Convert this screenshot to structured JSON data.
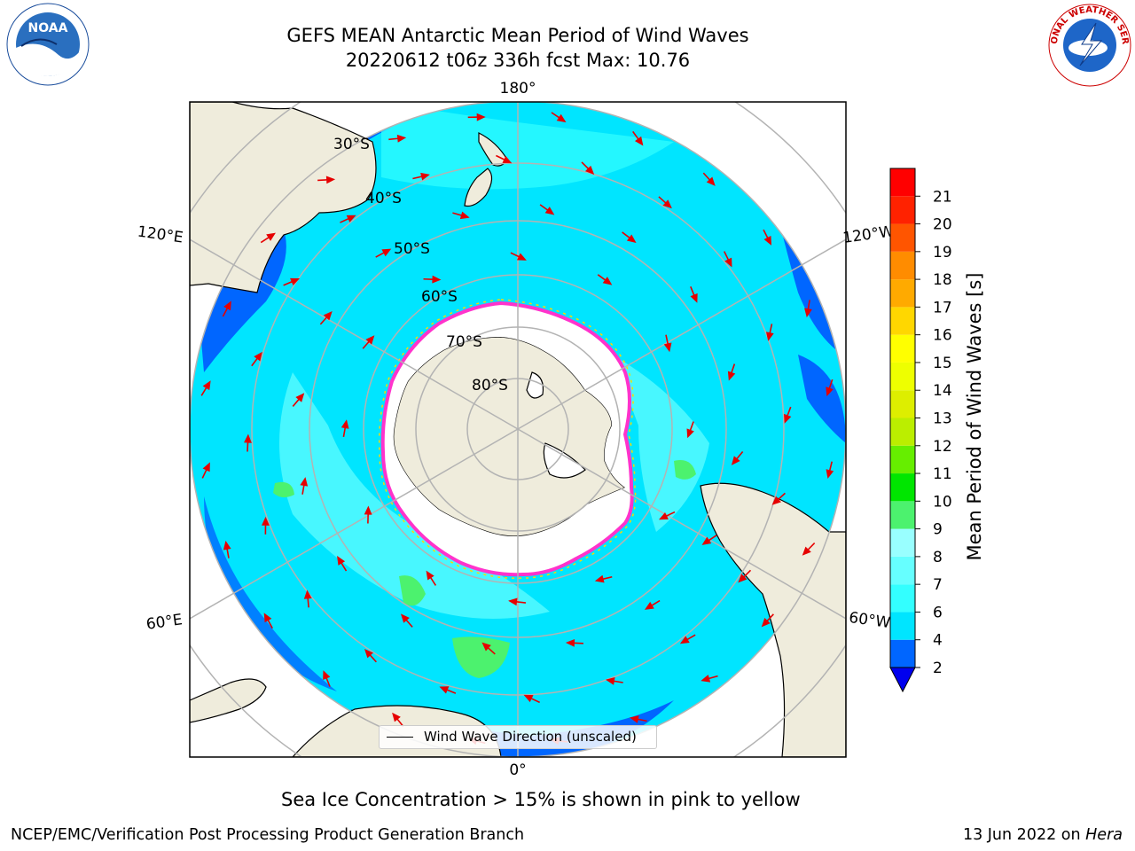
{
  "header": {
    "title_line1": "GEFS MEAN Antarctic Mean Period of Wind Waves",
    "title_line2": "20220612 t06z 336h fcst   Max: 10.76"
  },
  "logos": {
    "left": {
      "name": "noaa-logo",
      "text": "NOAA"
    },
    "right": {
      "name": "nws-logo",
      "text": "NATIONAL WEATHER SERVICE"
    }
  },
  "map": {
    "projection": "south-polar-stereographic",
    "meridian_labels": {
      "top": "180°",
      "bottom": "0°",
      "upper_left": "120°E",
      "upper_right": "120°W",
      "lower_left": "60°E",
      "lower_right": "60°W"
    },
    "parallel_labels": [
      "30°S",
      "40°S",
      "50°S",
      "60°S",
      "70°S",
      "80°S"
    ],
    "legend_label": "Wind Wave Direction (unscaled)",
    "colors": {
      "land": "#efecdc",
      "ice_edge": [
        "#ff33cc",
        "#ffd700"
      ],
      "arrow": "#e60000",
      "grid": "#b3b3b3"
    }
  },
  "colorbar": {
    "label": "Mean Period of Wind Waves [s]",
    "ticks": [
      "2",
      "4",
      "6",
      "7",
      "8",
      "9",
      "10",
      "11",
      "12",
      "13",
      "14",
      "15",
      "16",
      "17",
      "18",
      "19",
      "20",
      "21"
    ],
    "colors": [
      "#0066ff",
      "#00e5ff",
      "#33ffff",
      "#66ffff",
      "#99ffff",
      "#4cf26e",
      "#00e600",
      "#66ee00",
      "#bbee00",
      "#ddee00",
      "#eeff00",
      "#ffff00",
      "#ffd700",
      "#ffaa00",
      "#ff8c00",
      "#ff5500",
      "#ff2200",
      "#ff0000"
    ],
    "extend_color": "#0000ee"
  },
  "notes": {
    "sea_ice": "Sea Ice Concentration > 15% is shown in pink to yellow"
  },
  "footer": {
    "left": "NCEP/EMC/Verification Post Processing Product Generation Branch",
    "right_prefix": "13 Jun 2022 on ",
    "right_host": "Hera"
  }
}
